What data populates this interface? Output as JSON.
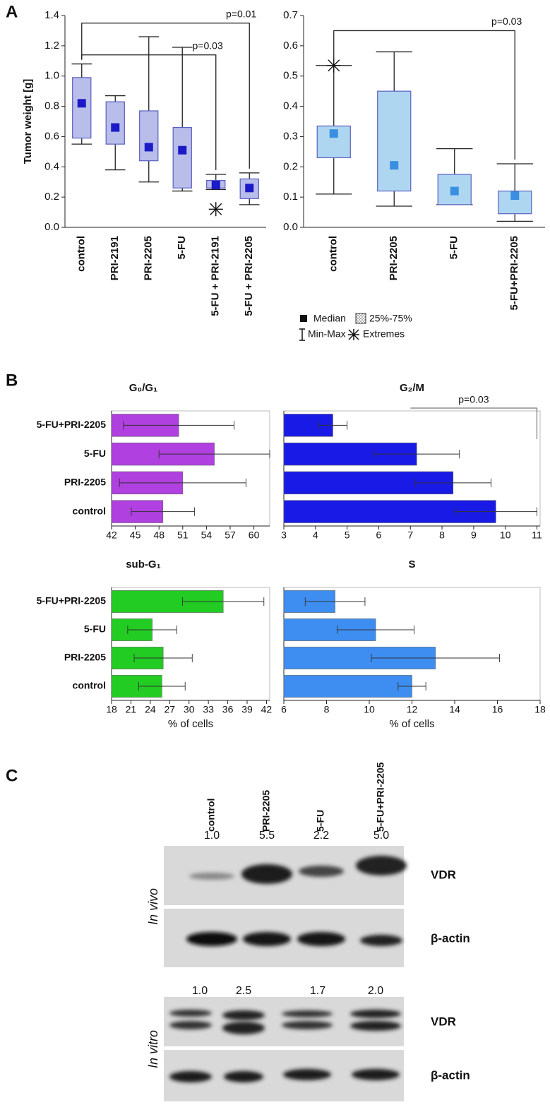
{
  "panel_labels": [
    "A",
    "B",
    "C"
  ],
  "box_legend": [
    "Median",
    "25%-75%",
    "Min-Max",
    "Extremes"
  ],
  "chart_data": [
    {
      "type": "box",
      "ylabel": "Tumor weight [g]",
      "color": "#b9bdea",
      "median_color": "#1a1ac8",
      "categories": [
        "control",
        "PRI-2191",
        "PRI-2205",
        "5-FU",
        "5-FU + PRI-2191",
        "5-FU + PRI-2205"
      ],
      "boxes": [
        {
          "min": 0.55,
          "q1": 0.59,
          "median": 0.82,
          "q3": 0.99,
          "max": 1.08
        },
        {
          "min": 0.38,
          "q1": 0.55,
          "median": 0.66,
          "q3": 0.83,
          "max": 0.87
        },
        {
          "min": 0.3,
          "q1": 0.44,
          "median": 0.53,
          "q3": 0.77,
          "max": 1.26
        },
        {
          "min": 0.24,
          "q1": 0.26,
          "median": 0.51,
          "q3": 0.66,
          "max": 1.19
        },
        {
          "min": 0.25,
          "q1": 0.26,
          "median": 0.28,
          "q3": 0.31,
          "max": 0.35,
          "extremes": [
            0.12
          ]
        },
        {
          "min": 0.15,
          "q1": 0.19,
          "median": 0.26,
          "q3": 0.32,
          "max": 0.36
        }
      ],
      "comparisons": [
        {
          "label": "p=0.01",
          "groups": [
            "control",
            "5-FU + PRI-2205"
          ],
          "y": 1.35
        },
        {
          "label": "p=0.03",
          "groups": [
            "control",
            "5-FU + PRI-2191"
          ],
          "y": 1.14
        }
      ],
      "ylim": [
        0,
        1.4
      ],
      "yticks": [
        {
          "value": 0,
          "label": "0.0"
        },
        {
          "value": 0.2,
          "label": "0.2"
        },
        {
          "value": 0.4,
          "label": "0.4"
        },
        {
          "value": 0.6,
          "label": "0.6"
        },
        {
          "value": 0.8,
          "label": "0.8"
        },
        {
          "value": 1,
          "label": "1.0"
        },
        {
          "value": 1.2,
          "label": "1.2"
        },
        {
          "value": 1.4,
          "label": "1.4"
        }
      ]
    },
    {
      "type": "box",
      "color": "#aed6f1",
      "median_color": "#3a8fe0",
      "categories": [
        "control",
        "PRI-2205",
        "5-FU",
        "5-FU+PRI-2205"
      ],
      "boxes": [
        {
          "min": 0.11,
          "q1": 0.23,
          "median": 0.31,
          "q3": 0.335,
          "max": 0.535,
          "extremes": [
            0.535
          ]
        },
        {
          "min": 0.07,
          "q1": 0.12,
          "median": 0.205,
          "q3": 0.45,
          "max": 0.58
        },
        {
          "min": 0.075,
          "q1": 0.075,
          "median": 0.12,
          "q3": 0.175,
          "max": 0.26
        },
        {
          "min": 0.02,
          "q1": 0.045,
          "median": 0.105,
          "q3": 0.12,
          "max": 0.21
        }
      ],
      "comparisons": [
        {
          "label": "p=0.03",
          "groups": [
            "control",
            "5-FU+PRI-2205"
          ],
          "y": 0.65
        }
      ],
      "ylim": [
        0,
        0.7
      ],
      "yticks": [
        {
          "value": 0,
          "label": "0.0"
        },
        {
          "value": 0.1,
          "label": "0.1"
        },
        {
          "value": 0.2,
          "label": "0.2"
        },
        {
          "value": 0.3,
          "label": "0.3"
        },
        {
          "value": 0.4,
          "label": "0.4"
        },
        {
          "value": 0.5,
          "label": "0.5"
        },
        {
          "value": 0.6,
          "label": "0.6"
        },
        {
          "value": 0.7,
          "label": "0.7"
        }
      ]
    },
    {
      "type": "bar",
      "title": "G₀/G₁",
      "color": "#b040e0",
      "categories": [
        "5-FU+PRI-2205",
        "5-FU",
        "PRI-2205",
        "control"
      ],
      "values": [
        50.5,
        55,
        51,
        48.5
      ],
      "errors": [
        7,
        7,
        8,
        4
      ],
      "xlim": [
        42,
        62
      ],
      "xticks": [
        42,
        45,
        48,
        51,
        54,
        57,
        60
      ]
    },
    {
      "type": "bar",
      "title": "G₂/M",
      "color": "#1a1ae6",
      "values": [
        4.55,
        7.2,
        8.35,
        9.7
      ],
      "errors": [
        0.45,
        1.35,
        1.2,
        1.3
      ],
      "annotation": {
        "text": "p=0.03",
        "from": 7,
        "to": 11
      },
      "xlim": [
        3,
        11.1
      ],
      "xticks": [
        3,
        4,
        5,
        6,
        7,
        8,
        9,
        10,
        11
      ]
    },
    {
      "type": "bar",
      "title": "sub-G₁",
      "xlabel": "% of cells",
      "color": "#22cc22",
      "categories": [
        "5-FU+PRI-2205",
        "5-FU",
        "PRI-2205",
        "control"
      ],
      "values": [
        35.3,
        24.3,
        26,
        25.8
      ],
      "errors": [
        6.3,
        3.8,
        4.5,
        3.6
      ],
      "xlim": [
        18,
        42.5
      ],
      "xticks": [
        18,
        21,
        24,
        27,
        30,
        33,
        36,
        39,
        42
      ]
    },
    {
      "type": "bar",
      "title": "S",
      "xlabel": "% of cells",
      "color": "#3d8ef0",
      "values": [
        8.4,
        10.3,
        13.1,
        12
      ],
      "errors": [
        1.4,
        1.8,
        3,
        0.65
      ],
      "xlim": [
        6,
        18
      ],
      "xticks": [
        6,
        8,
        10,
        12,
        14,
        16,
        18
      ]
    }
  ],
  "blot": {
    "lanes": [
      "control",
      "PRI-2205",
      "5-FU",
      "5-FU+PRI-2205"
    ],
    "in_vivo": {
      "label": "In vivo",
      "ratios": [
        "1.0",
        "5.5",
        "2.2",
        "5.0"
      ],
      "rows": [
        "VDR",
        "β-actin"
      ]
    },
    "in_vitro": {
      "label": "In vitro",
      "ratios": [
        "1.0",
        "2.5",
        "1.7",
        "2.0"
      ],
      "rows": [
        "VDR",
        "β-actin"
      ]
    }
  }
}
